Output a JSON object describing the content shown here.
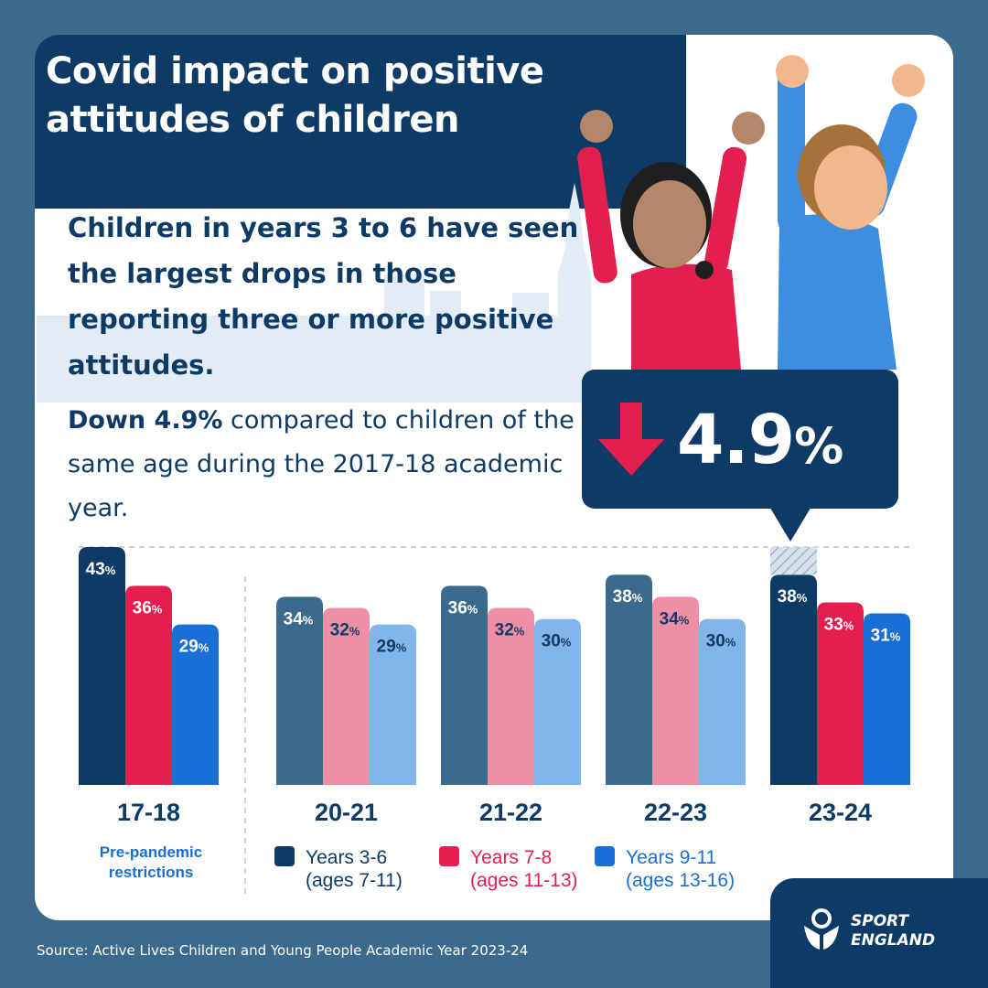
{
  "title_line1": "Covid impact on positive",
  "title_line2": "attitudes of children",
  "headline": "Children in years 3 to 6 have seen the largest drops in those reporting three or more positive attitudes.",
  "sub_bold": "Down 4.9%",
  "sub_rest": " compared to children of the same age during the 2017-18 academic year.",
  "callout": {
    "number": "4.9",
    "pct": "%"
  },
  "source": "Source: Active Lives Children and Young People Academic Year 2023-24",
  "logo": {
    "line1": "SPORT",
    "line2": "ENGLAND"
  },
  "colors": {
    "navy": "#0e3b66",
    "red": "#e41f4f",
    "blue": "#1a6fd6",
    "muted_navy": "#3b6a8c",
    "muted_red": "#ef8fa5",
    "muted_blue": "#82b6ea",
    "page_bg": "#3b6a8c"
  },
  "chart_data": {
    "type": "bar",
    "title": "",
    "categories": [
      "17-18",
      "20-21",
      "21-22",
      "22-23",
      "23-24"
    ],
    "category_note": "Pre-pandemic restrictions",
    "series": [
      {
        "name": "Years 3-6",
        "subname": "(ages 7-11)",
        "values": [
          43,
          34,
          36,
          38,
          38
        ]
      },
      {
        "name": "Years 7-8",
        "subname": "(ages 11-13)",
        "values": [
          36,
          32,
          32,
          34,
          33
        ]
      },
      {
        "name": "Years 9-11",
        "subname": "(ages 13-16)",
        "values": [
          29,
          29,
          30,
          30,
          31
        ]
      }
    ],
    "reference_value": 43,
    "ylim": [
      0,
      43
    ],
    "xlabel": "",
    "ylabel": "",
    "unit": "%",
    "grid": false,
    "legend": "bottom"
  }
}
